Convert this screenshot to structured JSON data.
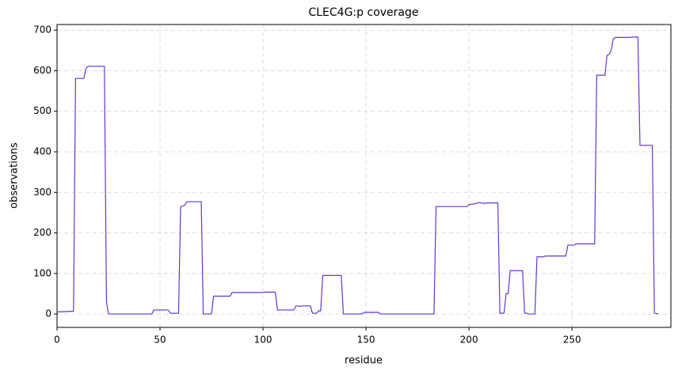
{
  "chart_data": {
    "type": "line",
    "title": "CLEC4G:p coverage",
    "x_label": "residue",
    "y_label": "observations",
    "x": [
      0,
      8,
      9,
      13,
      14,
      15,
      23,
      24,
      25,
      46,
      47,
      54,
      55,
      59,
      60,
      62,
      63,
      70,
      71,
      75,
      76,
      84,
      85,
      100,
      101,
      106,
      107,
      115,
      116,
      118,
      119,
      123,
      124,
      126,
      127,
      128,
      129,
      138,
      139,
      148,
      149,
      156,
      157,
      183,
      184,
      199,
      200,
      203,
      205,
      207,
      210,
      214,
      215,
      217,
      218,
      219,
      220,
      226,
      227,
      228,
      229,
      232,
      233,
      236,
      237,
      247,
      248,
      251,
      252,
      261,
      262,
      266,
      267,
      268,
      269,
      270,
      271,
      278,
      279,
      282,
      283,
      289,
      290,
      292
    ],
    "values": [
      5,
      7,
      581,
      581,
      605,
      611,
      611,
      30,
      0,
      0,
      10,
      10,
      2,
      2,
      265,
      268,
      277,
      277,
      0,
      0,
      44,
      44,
      53,
      53,
      54,
      54,
      10,
      10,
      20,
      19,
      20,
      20,
      2,
      2,
      8,
      8,
      95,
      95,
      0,
      0,
      4,
      4,
      0,
      0,
      265,
      265,
      270,
      272,
      275,
      273,
      274,
      274,
      2,
      2,
      50,
      50,
      107,
      107,
      2,
      2,
      0,
      0,
      141,
      141,
      143,
      143,
      170,
      170,
      173,
      173,
      589,
      589,
      638,
      640,
      650,
      678,
      682,
      682,
      683,
      683,
      416,
      416,
      2,
      0
    ],
    "color": "#6236d4",
    "xlim": [
      0,
      298
    ],
    "ylim": [
      -33,
      714
    ],
    "xticks": [
      0,
      50,
      100,
      150,
      200,
      250
    ],
    "yticks": [
      0,
      100,
      200,
      300,
      400,
      500,
      600,
      700
    ],
    "grid": true
  }
}
